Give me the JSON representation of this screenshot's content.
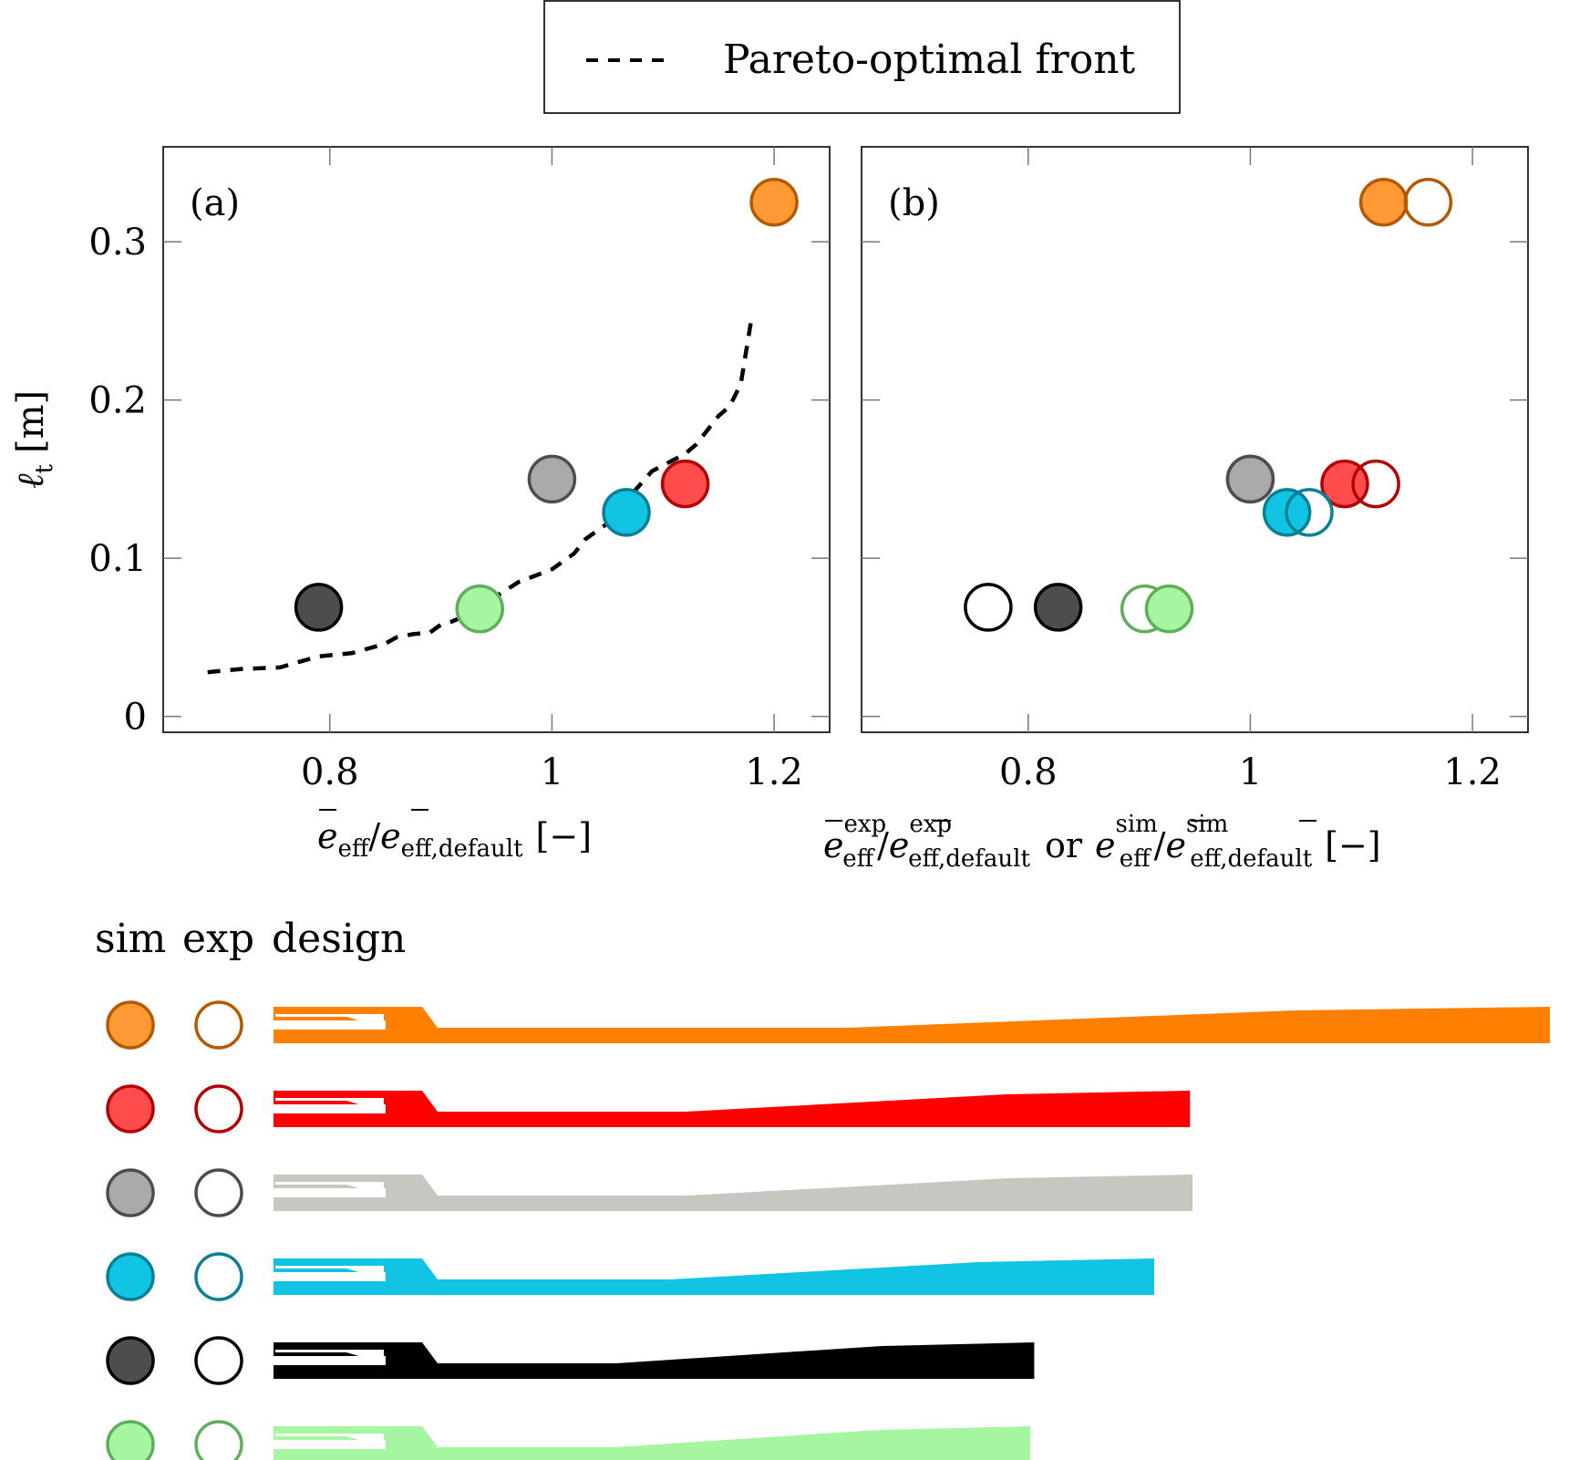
{
  "legend": {
    "entry": "Pareto-optimal front"
  },
  "chart_data": [
    {
      "type": "scatter",
      "panel_label": "(a)",
      "xlabel": {
        "prefix": "e",
        "sub1": "eff",
        "sep": "/",
        "sub2": "eff,default",
        "unit": "[−]"
      },
      "ylabel": {
        "symbol": "ℓ",
        "sub": "t",
        "unit": "[m]"
      },
      "xlim": [
        0.65,
        1.25
      ],
      "ylim": [
        -0.01,
        0.36
      ],
      "xticks": [
        "0.8",
        "1",
        "1.2"
      ],
      "xtick_values": [
        0.8,
        1.0,
        1.2
      ],
      "yticks": [
        "0",
        "0.1",
        "0.2",
        "0.3"
      ],
      "ytick_values": [
        0,
        0.1,
        0.2,
        0.3
      ],
      "pareto_front": {
        "x": [
          0.69,
          0.72,
          0.755,
          0.775,
          0.79,
          0.82,
          0.85,
          0.86,
          0.875,
          0.89,
          0.9,
          0.91,
          0.93,
          0.95,
          0.97,
          1.0,
          1.02,
          1.03,
          1.05,
          1.065,
          1.09,
          1.12,
          1.13,
          1.15,
          1.16,
          1.17,
          1.18
        ],
        "y": [
          0.028,
          0.03,
          0.031,
          0.035,
          0.038,
          0.04,
          0.046,
          0.05,
          0.052,
          0.053,
          0.058,
          0.06,
          0.066,
          0.076,
          0.085,
          0.093,
          0.103,
          0.112,
          0.122,
          0.135,
          0.155,
          0.166,
          0.172,
          0.19,
          0.196,
          0.21,
          0.253
        ]
      },
      "points": [
        {
          "design": "orange",
          "x": 1.2,
          "y": 0.325,
          "fill": "#FF9933",
          "stroke": "#B35A00"
        },
        {
          "design": "gray",
          "x": 1.0,
          "y": 0.15,
          "fill": "#AAAAAA",
          "stroke": "#4D4D4D"
        },
        {
          "design": "red",
          "x": 1.12,
          "y": 0.147,
          "fill": "#FF4D4D",
          "stroke": "#B30000"
        },
        {
          "design": "cyan",
          "x": 1.067,
          "y": 0.129,
          "fill": "#12C4E3",
          "stroke": "#0A7F96"
        },
        {
          "design": "black",
          "x": 0.79,
          "y": 0.069,
          "fill": "#4D4D4D",
          "stroke": "#000000"
        },
        {
          "design": "green",
          "x": 0.935,
          "y": 0.068,
          "fill": "#A6F5A0",
          "stroke": "#5FAE5A"
        }
      ]
    },
    {
      "type": "scatter",
      "panel_label": "(b)",
      "xlabel": {
        "prefix": "e",
        "sup": "exp",
        "sub1": "eff",
        "sep": "/",
        "sub2": "eff,default",
        "or": "or",
        "sup2": "sim",
        "unit": "[−]"
      },
      "xlim": [
        0.65,
        1.25
      ],
      "ylim": [
        -0.01,
        0.36
      ],
      "xticks": [
        "0.8",
        "1",
        "1.2"
      ],
      "xtick_values": [
        0.8,
        1.0,
        1.2
      ],
      "points": [
        {
          "design": "orange",
          "kind": "sim",
          "x": 1.12,
          "y": 0.325,
          "fill": "#FF9933",
          "stroke": "#B35A00"
        },
        {
          "design": "orange",
          "kind": "exp",
          "x": 1.16,
          "y": 0.325,
          "fill": "none",
          "stroke": "#B35A00"
        },
        {
          "design": "gray",
          "kind": "sim",
          "x": 1.0,
          "y": 0.15,
          "fill": "#AAAAAA",
          "stroke": "#4D4D4D"
        },
        {
          "design": "gray",
          "kind": "exp",
          "x": 1.0,
          "y": 0.15,
          "fill": "none",
          "stroke": "#4D4D4D"
        },
        {
          "design": "red",
          "kind": "sim",
          "x": 1.085,
          "y": 0.147,
          "fill": "#FF4D4D",
          "stroke": "#B30000"
        },
        {
          "design": "red",
          "kind": "exp",
          "x": 1.113,
          "y": 0.147,
          "fill": "none",
          "stroke": "#B30000"
        },
        {
          "design": "cyan",
          "kind": "sim",
          "x": 1.033,
          "y": 0.129,
          "fill": "#12C4E3",
          "stroke": "#0A7F96"
        },
        {
          "design": "cyan",
          "kind": "exp",
          "x": 1.053,
          "y": 0.129,
          "fill": "none",
          "stroke": "#0A7F96"
        },
        {
          "design": "black",
          "kind": "exp",
          "x": 0.764,
          "y": 0.069,
          "fill": "none",
          "stroke": "#000000"
        },
        {
          "design": "black",
          "kind": "sim",
          "x": 0.827,
          "y": 0.069,
          "fill": "#4D4D4D",
          "stroke": "#000000"
        },
        {
          "design": "green",
          "kind": "exp",
          "x": 0.905,
          "y": 0.068,
          "fill": "none",
          "stroke": "#5FAE5A"
        },
        {
          "design": "green",
          "kind": "sim",
          "x": 0.927,
          "y": 0.068,
          "fill": "#A6F5A0",
          "stroke": "#5FAE5A"
        }
      ]
    }
  ],
  "design_table": {
    "headers": [
      "sim",
      "exp",
      "design"
    ],
    "rows": [
      {
        "design": "orange",
        "fill": "#FF9933",
        "stroke": "#B35A00",
        "shape_color": "#FF8000",
        "relative_length": 1.0
      },
      {
        "design": "red",
        "fill": "#FF4D4D",
        "stroke": "#B30000",
        "shape_color": "#FF0000",
        "relative_length": 0.718
      },
      {
        "design": "gray",
        "fill": "#AAAAAA",
        "stroke": "#4D4D4D",
        "shape_color": "#C8C6C0",
        "relative_length": 0.72
      },
      {
        "design": "cyan",
        "fill": "#12C4E3",
        "stroke": "#0A7F96",
        "shape_color": "#12C4E3",
        "relative_length": 0.69
      },
      {
        "design": "black",
        "fill": "#4D4D4D",
        "stroke": "#000000",
        "shape_color": "#000000",
        "relative_length": 0.596
      },
      {
        "design": "green",
        "fill": "#A6F5A0",
        "stroke": "#5FAE5A",
        "shape_color": "#A6F5A0",
        "relative_length": 0.593
      }
    ]
  }
}
